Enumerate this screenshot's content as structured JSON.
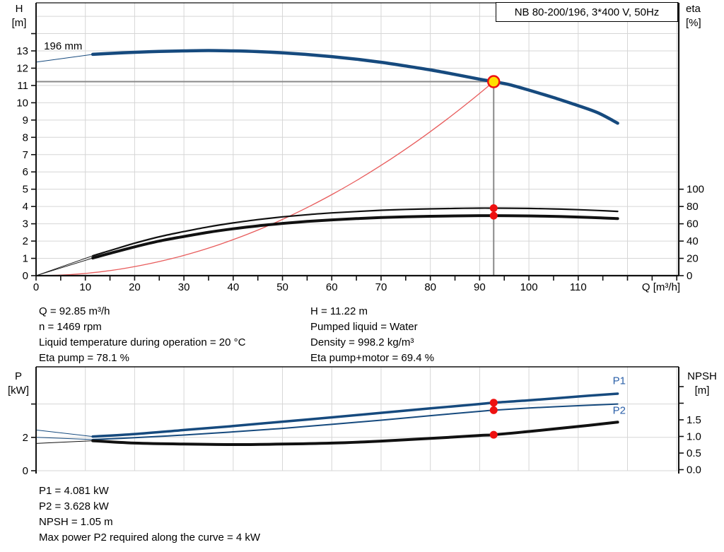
{
  "title_box": {
    "label": "NB 80-200/196, 3*400 V, 50Hz"
  },
  "colors": {
    "curve_blue": "#164a7e",
    "label_blue": "#2a5fa8",
    "curve_black": "#111111",
    "marker_red": "#ee1111",
    "duty_fill": "#ffdf00",
    "duty_curve_red": "#e85c5c",
    "crosshair_gray": "#8a8a8a",
    "grid_gray": "#d6d6d6"
  },
  "info_top": {
    "left": [
      "Q = 92.85 m³/h",
      "n = 1469 rpm",
      "Liquid temperature during operation = 20 °C",
      "Eta pump = 78.1 %"
    ],
    "right": [
      "H = 11.22 m",
      "Pumped liquid = Water",
      "Density = 998.2 kg/m³",
      "Eta pump+motor = 69.4 %"
    ]
  },
  "info_bottom": [
    "P1 = 4.081 kW",
    "P2 = 3.628 kW",
    "NPSH = 1.05 m",
    "Max power P2 required along the curve = 4 kW"
  ],
  "chart_data": [
    {
      "type": "line",
      "title": "NB 80-200/196, 3*400 V, 50Hz",
      "xlabel": "Q [m³/h]",
      "ylabel_left": "H [m]",
      "ylabel_right": "eta [%]",
      "xlim": [
        0,
        130.4
      ],
      "ylim_left": [
        0,
        15.78
      ],
      "eta_axis": {
        "domain": [
          0,
          100
        ],
        "ticks": [
          0,
          20,
          40,
          60,
          80,
          100
        ]
      },
      "x_tick_labels": [
        0,
        10,
        20,
        30,
        40,
        50,
        60,
        70,
        80,
        90,
        100,
        110
      ],
      "x_minor_step": 5,
      "h_tick_labels": [
        0,
        1,
        2,
        3,
        4,
        5,
        6,
        7,
        8,
        9,
        10,
        11,
        12,
        13
      ],
      "h_tick_max": 14,
      "grid": {
        "x_step": 10,
        "h_step": 1
      },
      "impeller_label": {
        "text": "196 mm",
        "q": 1.6,
        "h": 13.08
      },
      "duty_point": {
        "q": 92.85,
        "h": 11.22
      },
      "crosshair": true,
      "eta_markers": [
        {
          "q": 92.85,
          "eta": 78.1
        },
        {
          "q": 92.85,
          "eta": 69.4
        }
      ],
      "series": [
        {
          "name": "head-leader",
          "axis": "H",
          "width": 1,
          "color_key": "curve_blue",
          "points": [
            [
              0,
              12.35
            ],
            [
              11.5,
              12.8
            ]
          ]
        },
        {
          "name": "head-196mm",
          "axis": "H",
          "width": 4.5,
          "color_key": "curve_blue",
          "points": [
            [
              11.5,
              12.8
            ],
            [
              16,
              12.87
            ],
            [
              20,
              12.92
            ],
            [
              25,
              12.97
            ],
            [
              30,
              13.0
            ],
            [
              35,
              13.02
            ],
            [
              40,
              13.0
            ],
            [
              45,
              12.96
            ],
            [
              50,
              12.89
            ],
            [
              55,
              12.79
            ],
            [
              60,
              12.67
            ],
            [
              65,
              12.52
            ],
            [
              70,
              12.34
            ],
            [
              75,
              12.13
            ],
            [
              80,
              11.9
            ],
            [
              85,
              11.64
            ],
            [
              90,
              11.36
            ],
            [
              92.85,
              11.22
            ],
            [
              96,
              11.05
            ],
            [
              100,
              10.73
            ],
            [
              105,
              10.3
            ],
            [
              110,
              9.83
            ],
            [
              114,
              9.42
            ],
            [
              118,
              8.82
            ]
          ]
        },
        {
          "name": "eta-pump-leader",
          "axis": "eta",
          "width": 0.9,
          "color_key": "curve_black",
          "points": [
            [
              0,
              0
            ],
            [
              11.5,
              23
            ]
          ]
        },
        {
          "name": "eta-pump",
          "axis": "eta",
          "width": 2.2,
          "color_key": "curve_black",
          "points": [
            [
              11.5,
              23
            ],
            [
              15,
              29
            ],
            [
              20,
              37.5
            ],
            [
              25,
              45
            ],
            [
              30,
              51
            ],
            [
              35,
              56.5
            ],
            [
              40,
              61
            ],
            [
              45,
              64.8
            ],
            [
              50,
              68
            ],
            [
              55,
              70.5
            ],
            [
              60,
              72.6
            ],
            [
              65,
              74.2
            ],
            [
              70,
              75.6
            ],
            [
              75,
              76.6
            ],
            [
              80,
              77.3
            ],
            [
              85,
              77.8
            ],
            [
              90,
              78.1
            ],
            [
              92.85,
              78.1
            ],
            [
              96,
              78.0
            ],
            [
              100,
              77.8
            ],
            [
              105,
              77.2
            ],
            [
              110,
              76.3
            ],
            [
              114,
              75.4
            ],
            [
              118,
              74.3
            ]
          ]
        },
        {
          "name": "eta-pump-motor-leader",
          "axis": "eta",
          "width": 0.9,
          "color_key": "curve_black",
          "points": [
            [
              0,
              0
            ],
            [
              11.5,
              20.4
            ]
          ]
        },
        {
          "name": "eta-pump-motor",
          "axis": "eta",
          "width": 4,
          "color_key": "curve_black",
          "points": [
            [
              11.5,
              20.4
            ],
            [
              15,
              25.8
            ],
            [
              20,
              33.3
            ],
            [
              25,
              40
            ],
            [
              30,
              45.3
            ],
            [
              35,
              50.2
            ],
            [
              40,
              54.2
            ],
            [
              45,
              57.6
            ],
            [
              50,
              60.4
            ],
            [
              55,
              62.7
            ],
            [
              60,
              64.5
            ],
            [
              65,
              66
            ],
            [
              70,
              67.2
            ],
            [
              75,
              68.1
            ],
            [
              80,
              68.7
            ],
            [
              85,
              69.1
            ],
            [
              90,
              69.4
            ],
            [
              92.85,
              69.4
            ],
            [
              96,
              69.3
            ],
            [
              100,
              69.1
            ],
            [
              105,
              68.6
            ],
            [
              110,
              67.8
            ],
            [
              114,
              67
            ],
            [
              118,
              66
            ]
          ]
        }
      ]
    },
    {
      "type": "line",
      "ylabel_left": "P [kW]",
      "ylabel_right": "NPSH [m]",
      "xlim": [
        0,
        130.4
      ],
      "p_axis": {
        "domain": [
          0,
          6.23
        ],
        "ticks": [
          {
            "v": 0,
            "label": "0"
          },
          {
            "v": 2,
            "label": "2"
          },
          {
            "v": 4,
            "label": ""
          }
        ]
      },
      "npsh_axis": {
        "domain": [
          0,
          3.1
        ],
        "ticks": [
          {
            "v": 0,
            "label": "0.0"
          },
          {
            "v": 0.5,
            "label": "0.5"
          },
          {
            "v": 1,
            "label": "1.0"
          },
          {
            "v": 1.5,
            "label": "1.5"
          },
          {
            "v": 2,
            "label": ""
          },
          {
            "v": 2.5,
            "label": ""
          }
        ]
      },
      "grid": {
        "x_step": 10,
        "p_values": [
          2,
          4
        ]
      },
      "markers": [
        {
          "q": 92.85,
          "axis": "P",
          "v": 4.081
        },
        {
          "q": 92.85,
          "axis": "P",
          "v": 3.628
        },
        {
          "q": 92.85,
          "axis": "NPSH",
          "v": 1.05
        }
      ],
      "curve_labels": [
        {
          "text": "P1",
          "q": 117,
          "axis": "P",
          "v": 5.2
        },
        {
          "text": "P2",
          "q": 117,
          "axis": "P",
          "v": 3.42
        }
      ],
      "series": [
        {
          "name": "p1-leader",
          "axis": "P",
          "width": 1,
          "color_key": "curve_blue",
          "points": [
            [
              0,
              2.44
            ],
            [
              11.5,
              2.05
            ]
          ]
        },
        {
          "name": "p1",
          "axis": "P",
          "width": 3.5,
          "color_key": "curve_blue",
          "points": [
            [
              11.5,
              2.05
            ],
            [
              20,
              2.2
            ],
            [
              30,
              2.44
            ],
            [
              40,
              2.68
            ],
            [
              50,
              2.94
            ],
            [
              60,
              3.2
            ],
            [
              70,
              3.47
            ],
            [
              80,
              3.74
            ],
            [
              90,
              4.0
            ],
            [
              92.85,
              4.081
            ],
            [
              100,
              4.22
            ],
            [
              110,
              4.45
            ],
            [
              118,
              4.62
            ]
          ]
        },
        {
          "name": "p2-leader",
          "axis": "P",
          "width": 1,
          "color_key": "curve_blue",
          "points": [
            [
              0,
              2.0
            ],
            [
              11.5,
              1.87
            ]
          ]
        },
        {
          "name": "p2",
          "axis": "P",
          "width": 2,
          "color_key": "curve_blue",
          "points": [
            [
              11.5,
              1.87
            ],
            [
              20,
              1.98
            ],
            [
              30,
              2.14
            ],
            [
              40,
              2.33
            ],
            [
              50,
              2.54
            ],
            [
              60,
              2.78
            ],
            [
              70,
              3.03
            ],
            [
              80,
              3.3
            ],
            [
              90,
              3.56
            ],
            [
              92.85,
              3.628
            ],
            [
              100,
              3.76
            ],
            [
              110,
              3.9
            ],
            [
              118,
              4.0
            ]
          ]
        },
        {
          "name": "npsh-leader",
          "axis": "NPSH",
          "width": 1,
          "color_key": "curve_black",
          "points": [
            [
              0,
              0.79
            ],
            [
              11.5,
              0.87
            ]
          ]
        },
        {
          "name": "npsh",
          "axis": "NPSH",
          "width": 4,
          "color_key": "curve_black",
          "points": [
            [
              11.5,
              0.87
            ],
            [
              20,
              0.8
            ],
            [
              30,
              0.77
            ],
            [
              40,
              0.755
            ],
            [
              50,
              0.77
            ],
            [
              60,
              0.8
            ],
            [
              70,
              0.86
            ],
            [
              80,
              0.94
            ],
            [
              90,
              1.03
            ],
            [
              92.85,
              1.05
            ],
            [
              100,
              1.15
            ],
            [
              110,
              1.3
            ],
            [
              118,
              1.43
            ]
          ]
        }
      ]
    }
  ]
}
